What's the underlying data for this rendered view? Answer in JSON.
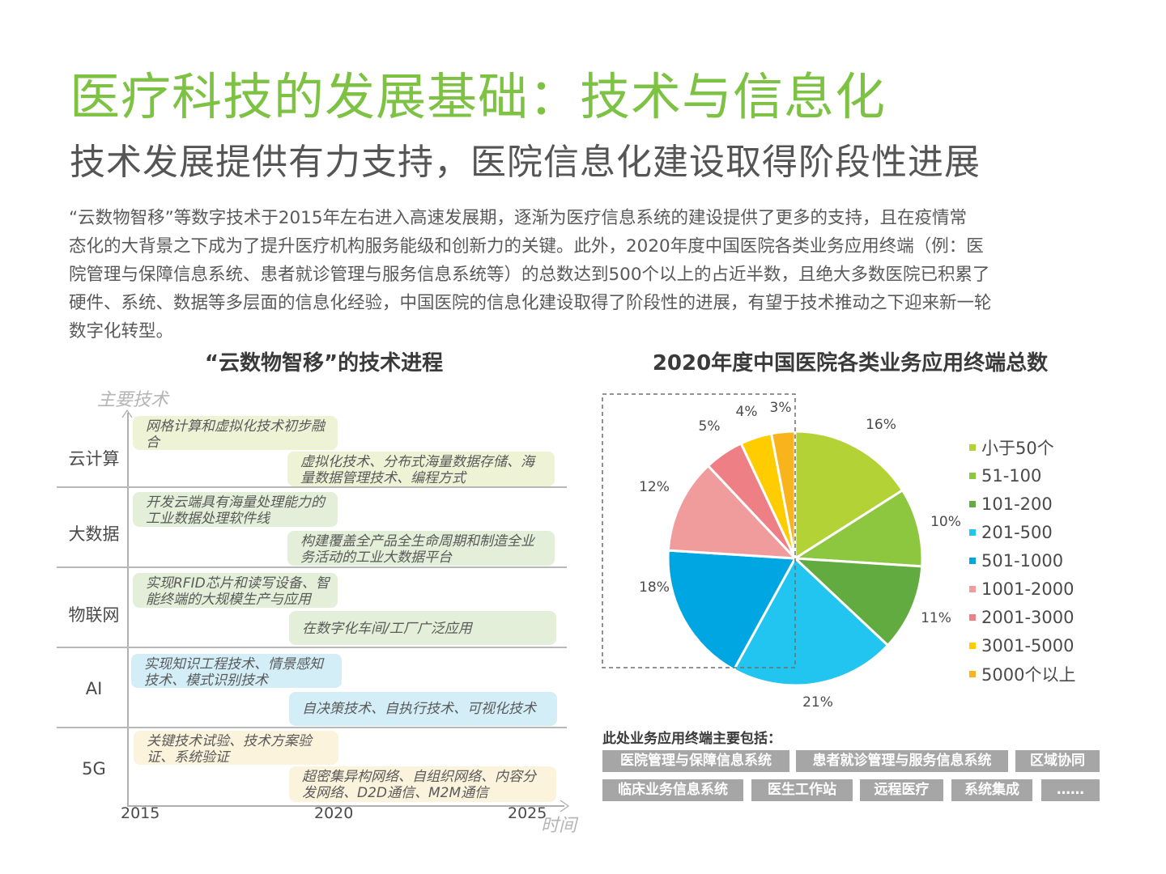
{
  "header": {
    "title": "医疗科技的发展基础：技术与信息化",
    "subtitle": "技术发展提供有力支持，医院信息化建设取得阶段性进展"
  },
  "paragraph": {
    "lines": [
      "“云数物智移”等数字技术于2015年左右进入高速发展期，逐渐为医疗信息系统的建设提供了更多的支持，且在疫情常",
      "态化的大背景之下成为了提升医疗机构服务能级和创新力的关键。此外，2020年度中国医院各类业务应用终端（例：医",
      "院管理与保障信息系统、患者就诊管理与服务信息系统等）的总数达到500个以上的占近半数，且绝大多数医院已积累了",
      "硬件、系统、数据等多层面的信息化经验，中国医院的信息化建设取得了阶段性的进展，有望于技术推动之下迎来新一轮",
      "数字化转型。"
    ]
  },
  "timeline": {
    "title": "“云数物智移”的技术进程",
    "y_axis_label": "主要技术",
    "x_axis_label": "时间",
    "years": [
      "2015",
      "2020",
      "2025"
    ],
    "rows": [
      {
        "label": "云计算",
        "early": "网格计算和虚拟化技术初步融合",
        "late": "虚拟化技术、分布式海量数据存储、海量数据管理技术、编程方式"
      },
      {
        "label": "大数据",
        "early": "开发云端具有海量处理能力的工业数据处理软件线",
        "late": "构建覆盖全产品全生命周期和制造全业务活动的工业大数据平台"
      },
      {
        "label": "物联网",
        "early": "实现RFID芯片和读写设备、智能终端的大规模生产与应用",
        "late": "在数字化车间/工厂广泛应用"
      },
      {
        "label": "AI",
        "early": "实现知识工程技术、情景感知技术、模式识别技术",
        "late": "自决策技术、自执行技术、可视化技术"
      },
      {
        "label": "5G",
        "early": "关键技术试验、技术方案验证、系统验证",
        "late": "超密集异构网络、自组织网络、内容分发网络、D2D通信、M2M通信"
      }
    ],
    "row_colors": [
      "#eef3d6",
      "#e3efd8",
      "#e3efd8",
      "#d4eef8",
      "#fbf3dc"
    ]
  },
  "chart_data": {
    "type": "pie",
    "title": "2020年度中国医院各类业务应用终端总数",
    "categories": [
      "小于50个",
      "51-100",
      "101-200",
      "201-500",
      "501-1000",
      "1001-2000",
      "2001-3000",
      "3001-5000",
      "5000个以上"
    ],
    "values": [
      16,
      10,
      11,
      21,
      18,
      12,
      5,
      4,
      3
    ],
    "unit": "%",
    "colors": [
      "#b2d235",
      "#8dc63f",
      "#62ab41",
      "#22c4f0",
      "#00a6e2",
      "#f19c9c",
      "#ee7f85",
      "#ffcc00",
      "#f9b31b"
    ],
    "start_angle": "12 o'clock, clockwise",
    "legend_position": "right",
    "annotation": "dashed box highlighting segments 501-1000 and above (500个以上)"
  },
  "terminals": {
    "title": "此处业务应用终端主要包括：",
    "row1": [
      "医院管理与保障信息系统",
      "患者就诊管理与服务信息系统",
      "区域协同"
    ],
    "row2": [
      "临床业务信息系统",
      "医生工作站",
      "远程医疗",
      "系统集成",
      "……"
    ]
  }
}
